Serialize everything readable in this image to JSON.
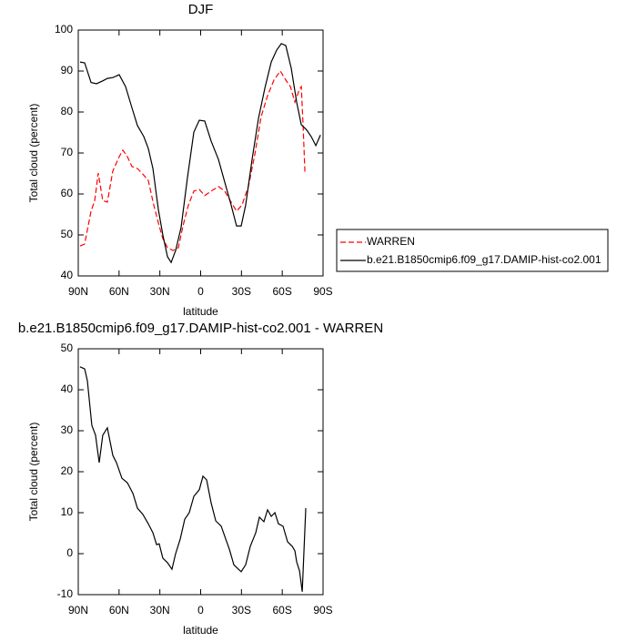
{
  "chart_data": [
    {
      "type": "line",
      "title": "DJF",
      "xlabel": "latitude",
      "ylabel": "Total cloud (percent)",
      "xlim": [
        90,
        -90
      ],
      "xticks": [
        {
          "value": 90,
          "label": "90N"
        },
        {
          "value": 60,
          "label": "60N"
        },
        {
          "value": 30,
          "label": "30N"
        },
        0,
        {
          "value": -30,
          "label": "30S"
        },
        {
          "value": -60,
          "label": "60S"
        },
        {
          "value": -90,
          "label": "90S"
        }
      ],
      "ylim": [
        40,
        100
      ],
      "yticks": [
        40,
        50,
        60,
        70,
        80,
        90,
        100
      ],
      "legend": "right",
      "series": [
        {
          "name": "WARREN",
          "color": "#ff0000",
          "dash": true,
          "x": [
            88.7,
            85.3,
            80.6,
            77.9,
            75.3,
            72,
            68.6,
            64.6,
            59.9,
            57.2,
            53.9,
            50.5,
            46.5,
            43.2,
            38.5,
            34.5,
            30.5,
            27.8,
            24.4,
            20.4,
            16.4,
            13,
            9,
            5,
            1,
            -3,
            -7.7,
            -13.1,
            -17.7,
            -22.4,
            -26.4,
            -30.4,
            -35.1,
            -39.8,
            -44.5,
            -49.2,
            -53.9,
            -58.6,
            -62.6,
            -66,
            -69.3,
            -72.7,
            -74,
            -75.4,
            -76.7
          ],
          "values": [
            47.3,
            47.8,
            55.8,
            58.4,
            65.1,
            58.4,
            58,
            65.6,
            69.1,
            70.7,
            69.1,
            66.7,
            66.2,
            65.1,
            63.3,
            57.3,
            52.2,
            49.1,
            46.9,
            46.2,
            46.9,
            52.2,
            57.3,
            60.7,
            61.1,
            59.6,
            60.7,
            61.8,
            60.7,
            58,
            55.8,
            57.3,
            61.8,
            69.6,
            78.9,
            84,
            87.8,
            90,
            87.8,
            86.2,
            82.4,
            85.6,
            86.2,
            76.2,
            65.1
          ]
        },
        {
          "name": "b.e21.B1850cmip6.f09_g17.DAMIP-hist-co2.001",
          "color": "#000000",
          "dash": false,
          "x": [
            88.7,
            85.3,
            80.6,
            76.6,
            72,
            68.6,
            64.6,
            59.9,
            55.2,
            50.5,
            46.5,
            41.8,
            38.5,
            35.1,
            31.1,
            27.8,
            24.4,
            21.7,
            18.4,
            14.4,
            9.7,
            5,
            1,
            -3,
            -7.7,
            -13.1,
            -17.7,
            -22.4,
            -26.4,
            -29.8,
            -33.1,
            -37.8,
            -42.5,
            -47.2,
            -51.9,
            -55.9,
            -59.3,
            -62.6,
            -66.6,
            -70.6,
            -74,
            -78,
            -81.3,
            -84.7,
            -88.1
          ],
          "values": [
            92.2,
            92,
            87.2,
            86.9,
            87.6,
            88.2,
            88.4,
            89.1,
            86.2,
            81,
            76.7,
            74,
            71.1,
            66.2,
            56.2,
            50,
            44.7,
            43.3,
            46.2,
            51.8,
            64,
            75.1,
            78,
            77.8,
            72.9,
            68.4,
            62.9,
            57.3,
            52.2,
            52.2,
            57.3,
            68.4,
            78.4,
            85.8,
            92.2,
            95.1,
            96.7,
            96.2,
            90.7,
            82.4,
            76.9,
            75.6,
            74,
            71.8,
            74.4
          ]
        }
      ]
    },
    {
      "type": "line",
      "title": "b.e21.B1850cmip6.f09_g17.DAMIP-hist-co2.001 - WARREN",
      "xlabel": "latitude",
      "ylabel": "Total cloud (percent)",
      "xlim": [
        90,
        -90
      ],
      "xticks": [
        {
          "value": 90,
          "label": "90N"
        },
        {
          "value": 60,
          "label": "60N"
        },
        {
          "value": 30,
          "label": "30N"
        },
        0,
        {
          "value": -30,
          "label": "30S"
        },
        {
          "value": -60,
          "label": "60S"
        },
        {
          "value": -90,
          "label": "90S"
        }
      ],
      "ylim": [
        -10,
        50
      ],
      "yticks": [
        -10,
        0,
        10,
        20,
        30,
        40,
        50
      ],
      "series": [
        {
          "color": "#000000",
          "dash": false,
          "x": [
            88.7,
            85.3,
            83.3,
            80,
            77.3,
            74.6,
            72,
            68.6,
            64.6,
            61.9,
            57.9,
            53.9,
            49.8,
            46.5,
            42.5,
            38.5,
            35.1,
            32.4,
            30.5,
            27.8,
            24.4,
            21.1,
            18.4,
            15,
            11.7,
            8.4,
            5,
            1,
            -1.7,
            -4.4,
            -7.7,
            -11.1,
            -15.1,
            -18.4,
            -21.1,
            -24.4,
            -27.8,
            -29.8,
            -33.1,
            -36.5,
            -40.5,
            -43.2,
            -46.5,
            -49.2,
            -51.9,
            -54.6,
            -57.2,
            -60.6,
            -63.9,
            -67.3,
            -69.3,
            -70.6,
            -72.7,
            -74.7,
            -77.3
          ],
          "values": [
            45.6,
            45.1,
            42.2,
            31.3,
            28.9,
            22.2,
            28.9,
            30.7,
            24,
            22.2,
            18.4,
            17.3,
            14.7,
            11.1,
            9.6,
            7.3,
            5.1,
            2.2,
            2.4,
            -1.1,
            -2.2,
            -3.8,
            0,
            3.6,
            8.4,
            10,
            14,
            15.6,
            18.9,
            18,
            12.4,
            8,
            6.7,
            3.6,
            1.1,
            -2.7,
            -3.8,
            -4.4,
            -2.7,
            1.8,
            5.1,
            8.9,
            7.8,
            10.7,
            9.1,
            10,
            7.3,
            6.7,
            2.9,
            1.8,
            0.7,
            -2,
            -4.2,
            -9.3,
            11.1
          ]
        }
      ]
    }
  ]
}
